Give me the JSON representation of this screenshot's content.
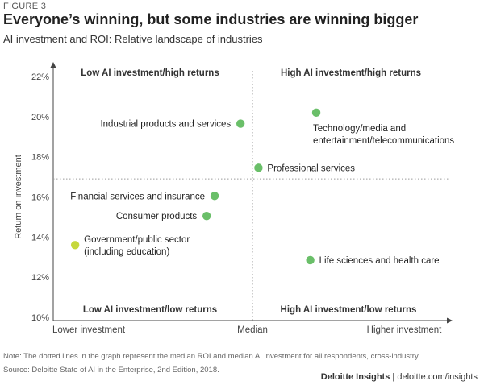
{
  "figure_label": "FIGURE 3",
  "brand": {
    "name": "Deloitte Insights",
    "separator": "|",
    "url": "deloitte.com/insights"
  },
  "colors": {
    "point": "#6abf69",
    "highlight": "#c6d83c",
    "axis": "#444444",
    "median_line": "#9a9a9a"
  },
  "chart_data": {
    "type": "scatter",
    "title": "Everyone’s winning, but some industries are winning bigger",
    "subtitle": "AI investment and ROI: Relative landscape of industries",
    "ylabel": "Return on investment",
    "ylim": [
      10,
      22
    ],
    "y_ticks": [
      "22%",
      "20%",
      "18%",
      "16%",
      "14%",
      "12%",
      "10%"
    ],
    "y_tick_values": [
      22,
      20,
      18,
      16,
      14,
      12,
      10
    ],
    "x_ticks": [
      "Lower investment",
      "Median",
      "Higher investment"
    ],
    "xlim": [
      0,
      100
    ],
    "x_median": 50,
    "y_median": 16.9,
    "grid": false,
    "quadrants": {
      "top_left": "Low AI investment/high returns",
      "top_right": "High AI investment/high returns",
      "bottom_left": "Low AI investment/low returns",
      "bottom_right": "High AI investment/low returns"
    },
    "points": [
      {
        "label": "Industrial products and services",
        "x": 47,
        "y": 19.65,
        "label_side": "left",
        "highlight": false
      },
      {
        "label": "Technology/media and entertainment/telecommunications",
        "lines": [
          "Technology/media and",
          "entertainment/telecommunications"
        ],
        "x": 66,
        "y": 20.2,
        "label_side": "below",
        "highlight": false
      },
      {
        "label": "Professional services",
        "x": 51.5,
        "y": 17.45,
        "label_side": "right",
        "highlight": false
      },
      {
        "label": "Financial services and insurance",
        "x": 40.5,
        "y": 16.05,
        "label_side": "left",
        "highlight": false
      },
      {
        "label": "Consumer products",
        "x": 38.5,
        "y": 15.05,
        "label_side": "left",
        "highlight": false
      },
      {
        "label": "Government/public sector (including education)",
        "lines": [
          "Government/public sector",
          "(including education)"
        ],
        "x": 5.5,
        "y": 13.6,
        "label_side": "right",
        "highlight": true
      },
      {
        "label": "Life sciences and health care",
        "x": 64.5,
        "y": 12.85,
        "label_side": "right",
        "highlight": false
      }
    ]
  },
  "notes": {
    "note": "Note: The dotted lines in the graph represent the median ROI and median AI investment for all respondents, cross-industry.",
    "source": "Source: Deloitte State of AI in the Enterprise, 2nd Edition, 2018."
  }
}
